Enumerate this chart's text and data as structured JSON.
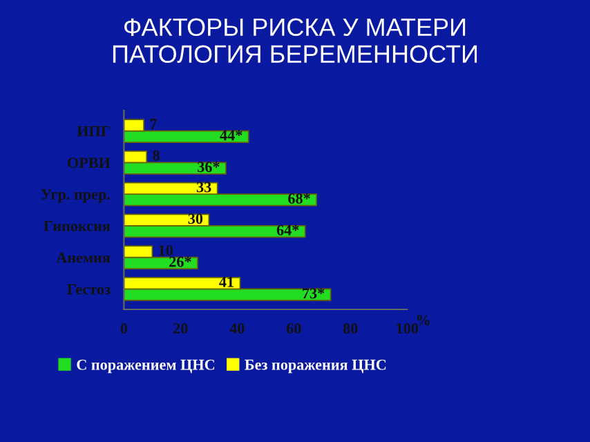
{
  "chart_data": {
    "type": "bar",
    "orientation": "horizontal",
    "title": "ФАКТОРЫ РИСКА У МАТЕРИ\nПАТОЛОГИЯ БЕРЕМЕННОСТИ",
    "xlabel": "%",
    "categories": [
      "ИПГ",
      "ОРВИ",
      "Угр. прер.",
      "Гипоксия",
      "Анемия",
      "Гестоз"
    ],
    "series": [
      {
        "name": "С поражением ЦНС",
        "color": "#22dd22",
        "values": [
          44,
          36,
          68,
          64,
          26,
          73
        ],
        "value_labels": [
          "44*",
          "36*",
          "68*",
          "64*",
          "26*",
          "73*"
        ]
      },
      {
        "name": "Без поражения ЦНС",
        "color": "#ffff00",
        "values": [
          7,
          8,
          33,
          30,
          10,
          41
        ],
        "value_labels": [
          "7",
          "8",
          "33",
          "30",
          "10",
          "41"
        ]
      }
    ],
    "xlim": [
      0,
      100
    ],
    "xticks": [
      0,
      20,
      40,
      60,
      80,
      100
    ],
    "grid": false,
    "legend": "bottom"
  }
}
